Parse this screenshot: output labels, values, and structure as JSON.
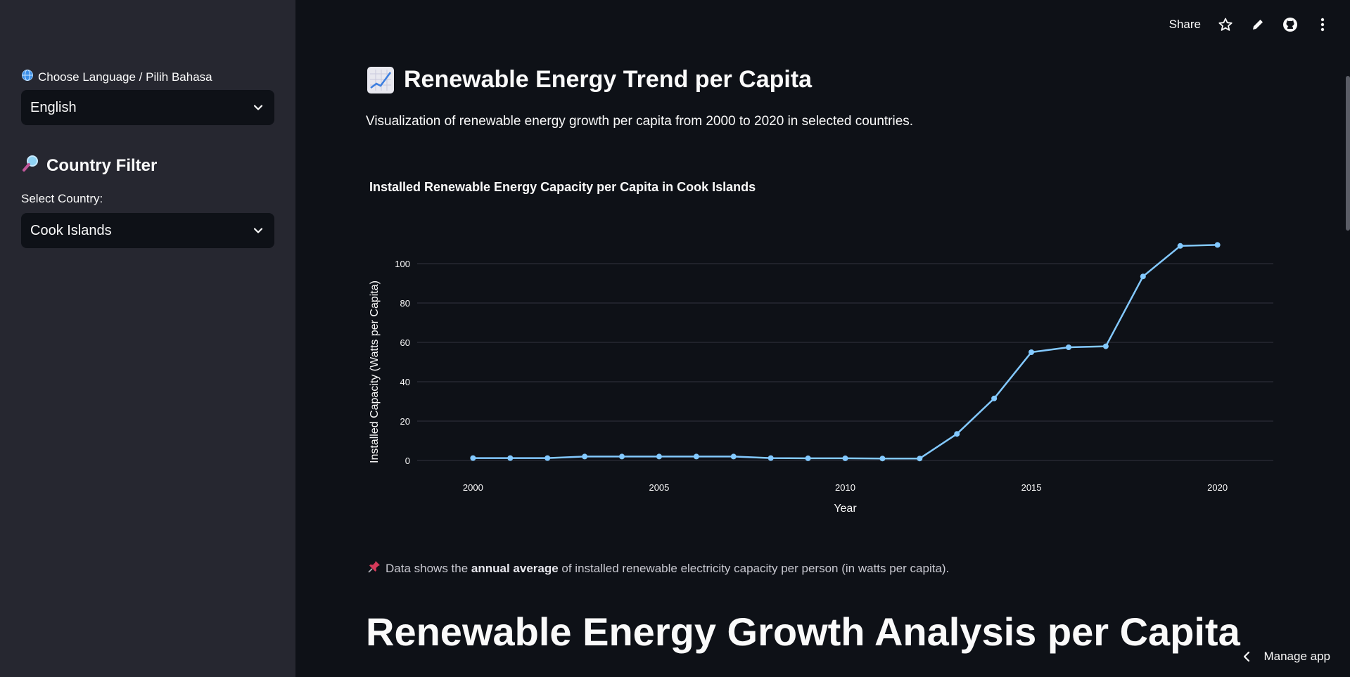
{
  "sidebar": {
    "language_label": "Choose Language / Pilih Bahasa",
    "language_value": "English",
    "filter_heading": "Country Filter",
    "country_label": "Select Country:",
    "country_value": "Cook Islands"
  },
  "toolbar": {
    "share_label": "Share"
  },
  "main": {
    "title": "Renewable Energy Trend per Capita",
    "subtitle": "Visualization of renewable energy growth per capita from 2000 to 2020 in selected countries.",
    "note_prefix": "Data shows the ",
    "note_bold": "annual average",
    "note_suffix": " of installed renewable electricity capacity per person (in watts per capita).",
    "section_heading": "Renewable Energy Growth Analysis per Capita"
  },
  "footer": {
    "manage_label": "Manage app"
  },
  "colors": {
    "background": "#0e1117",
    "sidebar": "#262730",
    "line": "#83c9ff"
  },
  "chart_data": {
    "type": "line",
    "title": "Installed Renewable Energy Capacity per Capita in Cook Islands",
    "xlabel": "Year",
    "ylabel": "Installed Capacity (Watts per Capita)",
    "x": [
      2000,
      2001,
      2002,
      2003,
      2004,
      2005,
      2006,
      2007,
      2008,
      2009,
      2010,
      2011,
      2012,
      2013,
      2014,
      2015,
      2016,
      2017,
      2018,
      2019,
      2020
    ],
    "y": [
      1.2,
      1.2,
      1.2,
      2,
      2,
      2,
      2,
      2,
      1.2,
      1.1,
      1.1,
      1,
      1,
      13.5,
      31.5,
      55,
      57.5,
      58,
      93.5,
      109,
      109.5
    ],
    "xticks": [
      2000,
      2005,
      2010,
      2015,
      2020
    ],
    "yticks": [
      0,
      20,
      40,
      60,
      80,
      100
    ],
    "xlim": [
      1998.5,
      2021.5
    ],
    "ylim": [
      0,
      110
    ],
    "grid": true
  }
}
